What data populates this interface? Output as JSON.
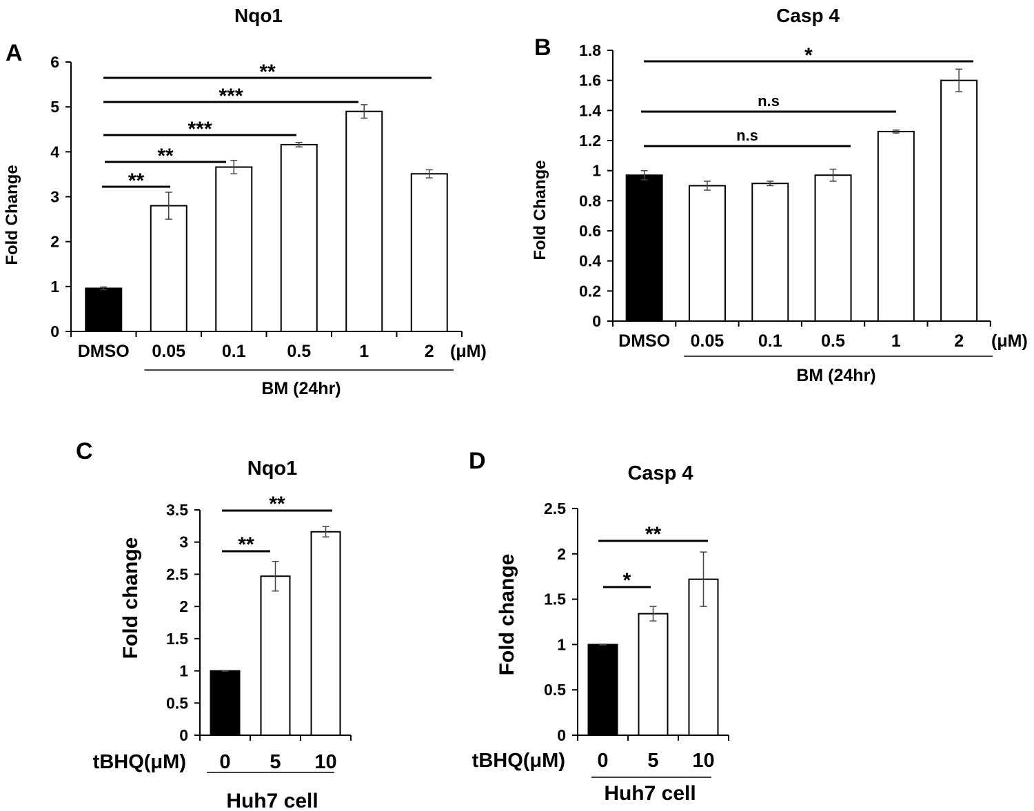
{
  "chart_data": [
    {
      "panel": "A",
      "type": "bar",
      "title": "Nqo1",
      "ylabel": "Fold Change",
      "xlabel": "BM (24hr)",
      "unit": "(μM)",
      "categories": [
        "DMSO",
        "0.05",
        "0.1",
        "0.5",
        "1",
        "2"
      ],
      "values": [
        0.96,
        2.8,
        3.66,
        4.16,
        4.9,
        3.51
      ],
      "errors": [
        0.03,
        0.3,
        0.15,
        0.05,
        0.15,
        0.09
      ],
      "fills": [
        "#000000",
        "#ffffff",
        "#ffffff",
        "#ffffff",
        "#ffffff",
        "#ffffff"
      ],
      "ylim": [
        0,
        6
      ],
      "yticks": [
        "0",
        "1",
        "2",
        "3",
        "4",
        "5",
        "6"
      ],
      "group_start": 1,
      "significance": [
        {
          "from": 0,
          "to": 1,
          "label": "**"
        },
        {
          "from": 0,
          "to": 2,
          "label": "**"
        },
        {
          "from": 0,
          "to": 3,
          "label": "***"
        },
        {
          "from": 0,
          "to": 4,
          "label": "***"
        },
        {
          "from": 0,
          "to": 5,
          "label": "**"
        }
      ]
    },
    {
      "panel": "B",
      "type": "bar",
      "title": "Casp 4",
      "ylabel": "Fold Change",
      "xlabel": "BM (24hr)",
      "unit": "(μM)",
      "categories": [
        "DMSO",
        "0.05",
        "0.1",
        "0.5",
        "1",
        "2"
      ],
      "values": [
        0.97,
        0.9,
        0.915,
        0.97,
        1.26,
        1.6
      ],
      "errors": [
        0.03,
        0.03,
        0.015,
        0.04,
        0.01,
        0.075
      ],
      "fills": [
        "#000000",
        "#ffffff",
        "#ffffff",
        "#ffffff",
        "#ffffff",
        "#ffffff"
      ],
      "ylim": [
        0,
        1.8
      ],
      "yticks": [
        "0",
        "0.2",
        "0.4",
        "0.6",
        "0.8",
        "1",
        "1.2",
        "1.4",
        "1.6",
        "1.8"
      ],
      "group_start": 1,
      "significance": [
        {
          "from": 0,
          "to": 3,
          "label": "n.s"
        },
        {
          "from": 0,
          "to": 4,
          "label": "n.s"
        },
        {
          "from": 0,
          "to": 5,
          "label": "*"
        }
      ]
    },
    {
      "panel": "C",
      "type": "bar",
      "title": "Nqo1",
      "ylabel": "Fold change",
      "xlabel": "Huh7 cell",
      "unit": "tBHQ(μM)",
      "categories": [
        "0",
        "5",
        "10"
      ],
      "values": [
        1.0,
        2.47,
        3.16
      ],
      "errors": [
        0.005,
        0.23,
        0.08
      ],
      "fills": [
        "#000000",
        "#ffffff",
        "#ffffff"
      ],
      "ylim": [
        0,
        3.5
      ],
      "yticks": [
        "0",
        "0.5",
        "1",
        "1.5",
        "2",
        "2.5",
        "3",
        "3.5"
      ],
      "group_start": 0,
      "significance": [
        {
          "from": 0,
          "to": 1,
          "label": "**"
        },
        {
          "from": 0,
          "to": 2,
          "label": "**"
        }
      ]
    },
    {
      "panel": "D",
      "type": "bar",
      "title": "Casp 4",
      "ylabel": "Fold change",
      "xlabel": "Huh7 cell",
      "unit": "tBHQ(μM)",
      "categories": [
        "0",
        "5",
        "10"
      ],
      "values": [
        1.0,
        1.34,
        1.72
      ],
      "errors": [
        0.005,
        0.08,
        0.3
      ],
      "fills": [
        "#000000",
        "#ffffff",
        "#ffffff"
      ],
      "ylim": [
        0,
        2.5
      ],
      "yticks": [
        "0",
        "0.5",
        "1",
        "1.5",
        "2",
        "2.5"
      ],
      "group_start": 0,
      "significance": [
        {
          "from": 0,
          "to": 1,
          "label": "*"
        },
        {
          "from": 0,
          "to": 2,
          "label": "**"
        }
      ]
    }
  ]
}
